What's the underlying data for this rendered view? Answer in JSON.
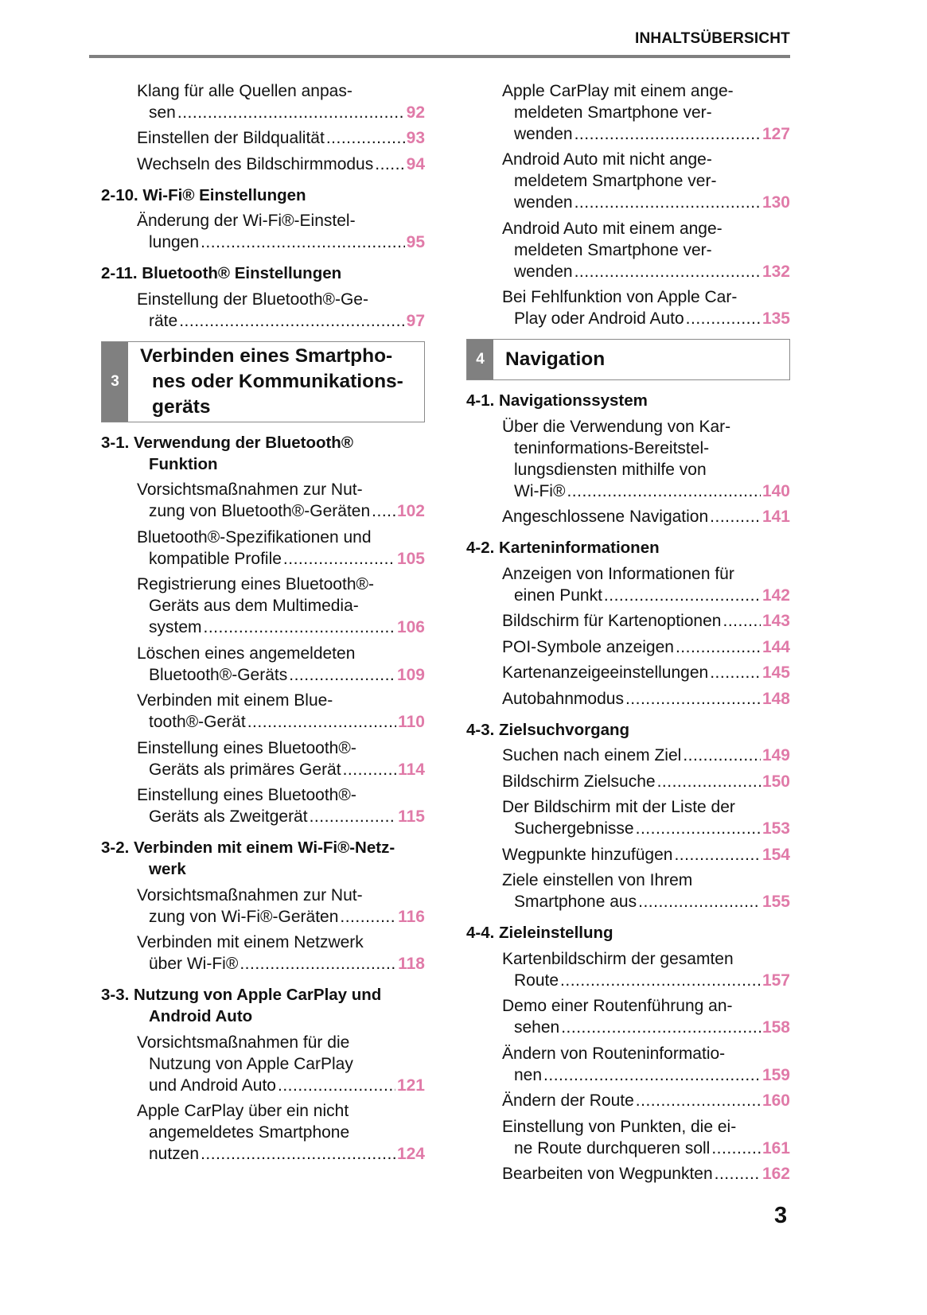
{
  "header": {
    "title": "INHALTSÜBERSICHT"
  },
  "page_number": "3",
  "accent_color": "#e07aa8",
  "left": [
    {
      "type": "entry",
      "lines": [
        "Klang für alle Quellen anpas-"
      ],
      "last": "sen",
      "page": "92"
    },
    {
      "type": "entry",
      "lines": [],
      "last": "Einstellen der Bildqualität",
      "page": "93"
    },
    {
      "type": "entry",
      "lines": [],
      "last": "Wechseln des Bildschirmmodus",
      "page": "94"
    },
    {
      "type": "heading",
      "lines": [
        "2-10. Wi-Fi® Einstellungen"
      ]
    },
    {
      "type": "entry",
      "lines": [
        "Änderung der Wi-Fi®-Einstel-"
      ],
      "last": "lungen",
      "page": "95"
    },
    {
      "type": "heading",
      "lines": [
        "2-11. Bluetooth® Einstellungen"
      ]
    },
    {
      "type": "entry",
      "lines": [
        "Einstellung der Bluetooth®-Ge-"
      ],
      "last": "räte",
      "page": "97"
    },
    {
      "type": "section",
      "number": "3",
      "lines": [
        "Verbinden eines Smartpho-",
        "nes oder Kommunikations-",
        "geräts"
      ]
    },
    {
      "type": "heading",
      "lines": [
        "3-1. Verwendung der Bluetooth®",
        "Funktion"
      ]
    },
    {
      "type": "entry",
      "lines": [
        "Vorsichtsmaßnahmen zur Nut-"
      ],
      "last": "zung von Bluetooth®-Geräten",
      "page": "102"
    },
    {
      "type": "entry",
      "lines": [
        "Bluetooth®-Spezifikationen und"
      ],
      "last": "kompatible Profile",
      "page": "105"
    },
    {
      "type": "entry",
      "lines": [
        "Registrierung eines Bluetooth®-",
        "Geräts aus dem Multimedia-"
      ],
      "last": "system",
      "page": "106"
    },
    {
      "type": "entry",
      "lines": [
        "Löschen eines angemeldeten"
      ],
      "last": "Bluetooth®-Geräts",
      "page": "109"
    },
    {
      "type": "entry",
      "lines": [
        "Verbinden mit einem Blue-"
      ],
      "last": "tooth®-Gerät",
      "page": "110"
    },
    {
      "type": "entry",
      "lines": [
        "Einstellung eines Bluetooth®-"
      ],
      "last": "Geräts als primäres Gerät",
      "page": "114"
    },
    {
      "type": "entry",
      "lines": [
        "Einstellung eines Bluetooth®-"
      ],
      "last": "Geräts als Zweitgerät",
      "page": "115"
    },
    {
      "type": "heading",
      "lines": [
        "3-2. Verbinden mit einem Wi-Fi®-Netz-",
        "werk"
      ]
    },
    {
      "type": "entry",
      "lines": [
        "Vorsichtsmaßnahmen zur Nut-"
      ],
      "last": "zung von Wi-Fi®-Geräten",
      "page": "116"
    },
    {
      "type": "entry",
      "lines": [
        "Verbinden mit einem Netzwerk"
      ],
      "last": "über Wi-Fi®",
      "page": "118"
    },
    {
      "type": "heading",
      "lines": [
        "3-3. Nutzung von Apple CarPlay und",
        "Android Auto"
      ]
    },
    {
      "type": "entry",
      "lines": [
        "Vorsichtsmaßnahmen für die",
        "Nutzung von Apple CarPlay"
      ],
      "last": "und Android Auto",
      "page": "121"
    },
    {
      "type": "entry",
      "lines": [
        "Apple CarPlay über ein nicht",
        "angemeldetes Smartphone"
      ],
      "last": "nutzen",
      "page": "124"
    }
  ],
  "right": [
    {
      "type": "entry",
      "lines": [
        "Apple CarPlay mit einem ange-",
        "meldeten Smartphone ver-"
      ],
      "last": "wenden",
      "page": "127"
    },
    {
      "type": "entry",
      "lines": [
        "Android Auto mit nicht ange-",
        "meldetem Smartphone ver-"
      ],
      "last": "wenden",
      "page": "130"
    },
    {
      "type": "entry",
      "lines": [
        "Android Auto mit einem ange-",
        "meldeten Smartphone ver-"
      ],
      "last": "wenden",
      "page": "132"
    },
    {
      "type": "entry",
      "lines": [
        "Bei Fehlfunktion von Apple Car-"
      ],
      "last": "Play oder Android Auto",
      "page": "135"
    },
    {
      "type": "section",
      "number": "4",
      "lines": [
        "Navigation"
      ]
    },
    {
      "type": "heading",
      "lines": [
        "4-1. Navigationssystem"
      ]
    },
    {
      "type": "entry",
      "lines": [
        "Über die Verwendung von Kar-",
        "teninformations-Bereitstel-",
        "lungsdiensten mithilfe von"
      ],
      "last": "Wi-Fi®",
      "page": "140"
    },
    {
      "type": "entry",
      "lines": [],
      "last": "Angeschlossene Navigation",
      "page": "141"
    },
    {
      "type": "heading",
      "lines": [
        "4-2. Karteninformationen"
      ]
    },
    {
      "type": "entry",
      "lines": [
        "Anzeigen von Informationen für"
      ],
      "last": "einen Punkt",
      "page": "142"
    },
    {
      "type": "entry",
      "lines": [],
      "last": "Bildschirm für Kartenoptionen",
      "page": "143"
    },
    {
      "type": "entry",
      "lines": [],
      "last": "POI-Symbole anzeigen",
      "page": "144"
    },
    {
      "type": "entry",
      "lines": [],
      "last": "Kartenanzeigeeinstellungen",
      "page": "145"
    },
    {
      "type": "entry",
      "lines": [],
      "last": "Autobahnmodus",
      "page": "148"
    },
    {
      "type": "heading",
      "lines": [
        "4-3. Zielsuchvorgang"
      ]
    },
    {
      "type": "entry",
      "lines": [],
      "last": "Suchen nach einem Ziel",
      "page": "149"
    },
    {
      "type": "entry",
      "lines": [],
      "last": "Bildschirm Zielsuche",
      "page": "150"
    },
    {
      "type": "entry",
      "lines": [
        "Der Bildschirm mit der Liste der"
      ],
      "last": "Suchergebnisse",
      "page": "153"
    },
    {
      "type": "entry",
      "lines": [],
      "last": "Wegpunkte hinzufügen",
      "page": "154"
    },
    {
      "type": "entry",
      "lines": [
        "Ziele einstellen von Ihrem"
      ],
      "last": "Smartphone aus",
      "page": "155"
    },
    {
      "type": "heading",
      "lines": [
        "4-4. Zieleinstellung"
      ]
    },
    {
      "type": "entry",
      "lines": [
        "Kartenbildschirm der gesamten"
      ],
      "last": "Route",
      "page": "157"
    },
    {
      "type": "entry",
      "lines": [
        "Demo einer Routenführung an-"
      ],
      "last": "sehen",
      "page": "158"
    },
    {
      "type": "entry",
      "lines": [
        "Ändern von Routeninformatio-"
      ],
      "last": "nen",
      "page": "159"
    },
    {
      "type": "entry",
      "lines": [],
      "last": "Ändern der Route",
      "page": "160"
    },
    {
      "type": "entry",
      "lines": [
        "Einstellung von Punkten, die ei-"
      ],
      "last": "ne Route durchqueren soll",
      "page": "161"
    },
    {
      "type": "entry",
      "lines": [],
      "last": "Bearbeiten von Wegpunkten",
      "page": "162"
    }
  ]
}
